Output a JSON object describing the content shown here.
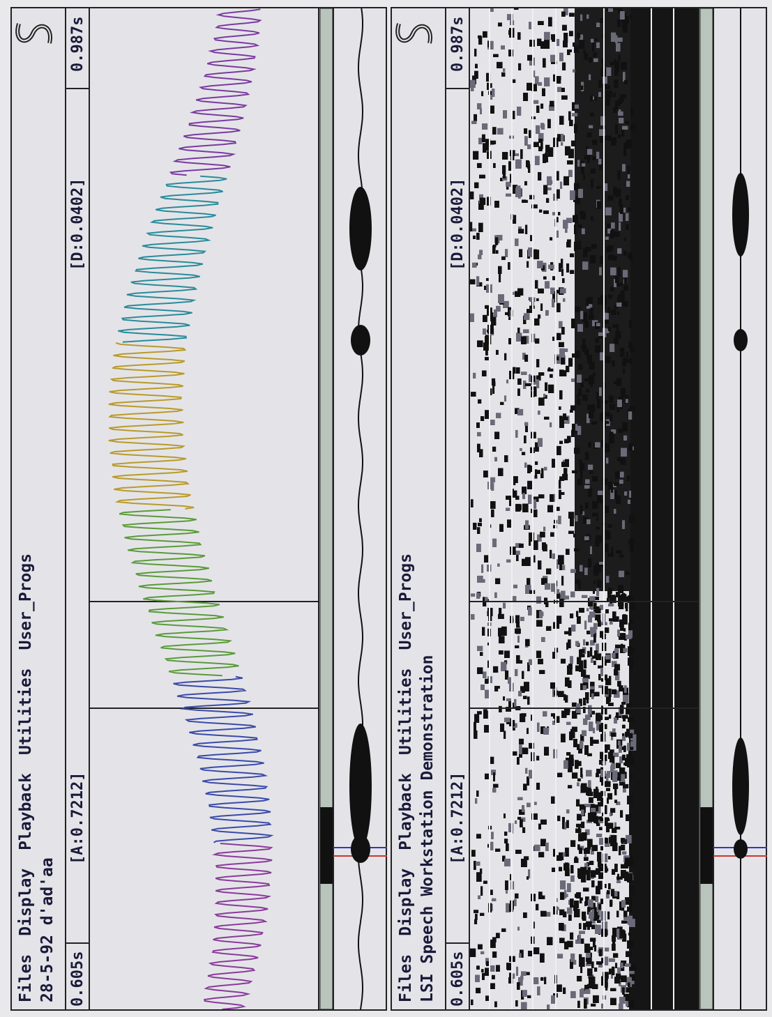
{
  "panes": [
    {
      "menu": [
        "Files",
        "Display",
        "Playback",
        "Utilities",
        "User_Progs"
      ],
      "subtitle": "28-5-92 d'ad'aa",
      "status": {
        "start": "0.605s",
        "cursor_a": "[A:0.7212]",
        "cursor_d": "[D:0.0402]",
        "end": "0.987s"
      }
    },
    {
      "menu": [
        "Files",
        "Display",
        "Playback",
        "Utilities",
        "User_Progs"
      ],
      "subtitle": "LSI Speech Workstation Demonstration",
      "status": {
        "start": "0.605s",
        "cursor_a": "[A:0.7212]",
        "cursor_d": "[D:0.0402]",
        "end": "0.987s"
      }
    }
  ]
}
